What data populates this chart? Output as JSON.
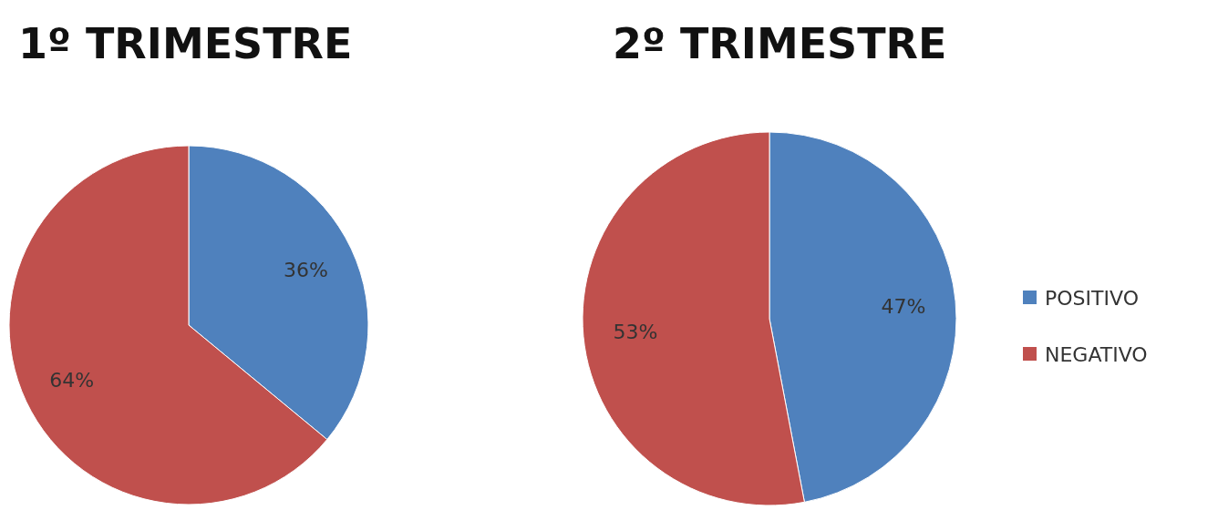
{
  "chart_data": [
    {
      "type": "pie",
      "title": "1º TRIMESTRE",
      "categories": [
        null,
        null
      ],
      "values": [
        36,
        64
      ],
      "value_labels": [
        "36%",
        "64%"
      ],
      "colors": [
        "#4f81bd",
        "#c0504d"
      ],
      "legend": false
    },
    {
      "type": "pie",
      "title": "2º TRIMESTRE",
      "categories": [
        "POSITIVO",
        "NEGATIVO"
      ],
      "values": [
        47,
        53
      ],
      "value_labels": [
        "47%",
        "53%"
      ],
      "colors": [
        "#4f81bd",
        "#c0504d"
      ],
      "legend": "right"
    }
  ]
}
